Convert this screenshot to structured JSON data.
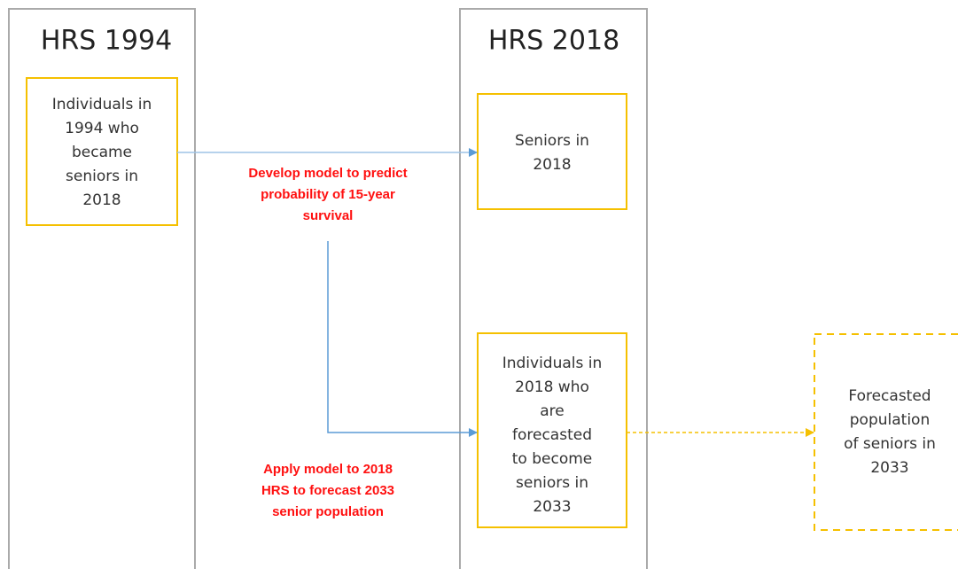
{
  "columns": [
    {
      "title": "HRS 1994"
    },
    {
      "title": "HRS 2018"
    }
  ],
  "boxes": [
    {
      "lines": [
        "Individuals in",
        "1994 who",
        "became",
        "seniors in",
        "2018"
      ]
    },
    {
      "lines": [
        "Seniors in",
        "2018"
      ]
    },
    {
      "lines": [
        "Individuals in",
        "2018 who",
        "are",
        "forecasted",
        "to become",
        "seniors in",
        "2033"
      ]
    },
    {
      "lines": [
        "Forecasted",
        "population",
        "of seniors in",
        "2033"
      ]
    }
  ],
  "annotations": [
    {
      "lines": [
        "Develop model to predict",
        "probability of 15-year",
        "survival"
      ]
    },
    {
      "lines": [
        "Apply model to 2018",
        "HRS to forecast 2033",
        "senior population"
      ]
    }
  ]
}
